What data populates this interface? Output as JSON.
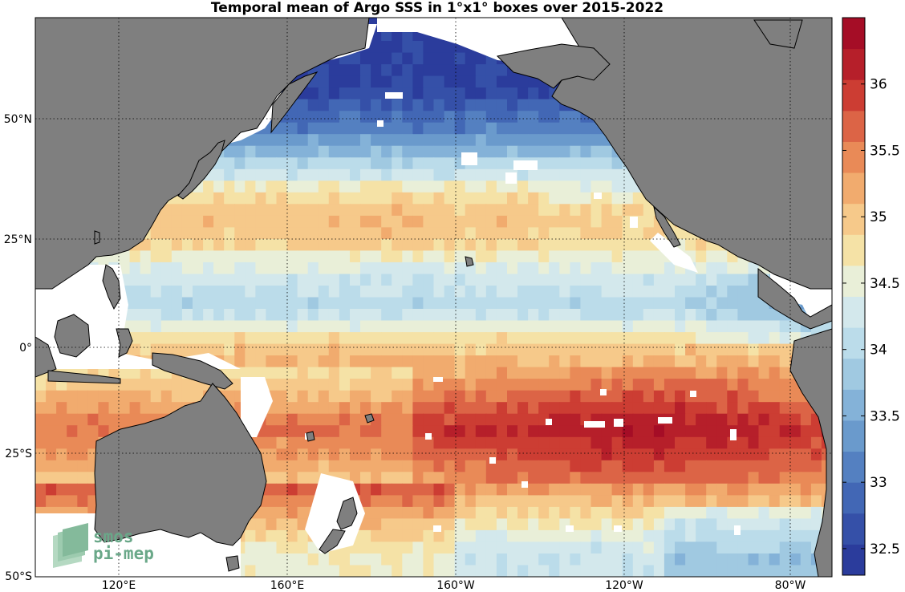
{
  "title": "Temporal mean of Argo SSS in 1°x1° boxes over 2015-2022",
  "map": {
    "lon_range_deg_east": [
      100,
      290
    ],
    "lat_range": [
      -50,
      70
    ],
    "graticule": "dotted",
    "land_color": "#7f7f7f",
    "nodata_color": "#ffffff",
    "lat_ticks": [
      {
        "value": 50,
        "label": "50°N"
      },
      {
        "value": 25,
        "label": "25°N"
      },
      {
        "value": 0,
        "label": "0°"
      },
      {
        "value": -25,
        "label": "25°S"
      },
      {
        "value": -50,
        "label": "50°S"
      }
    ],
    "lon_ticks": [
      {
        "value": 120,
        "label": "120°E"
      },
      {
        "value": 160,
        "label": "160°E"
      },
      {
        "value": 200,
        "label": "160°W"
      },
      {
        "value": 240,
        "label": "120°W"
      },
      {
        "value": 280,
        "label": "80°W"
      }
    ]
  },
  "colorbar": {
    "range": [
      32.3,
      36.5
    ],
    "tick_labels": [
      "32.5",
      "33",
      "33.5",
      "34",
      "34.5",
      "35",
      "35.5",
      "36"
    ],
    "colors": [
      "#2b3c9c",
      "#3550a8",
      "#4267b5",
      "#5480c1",
      "#6a9acc",
      "#84b2d8",
      "#a0c9e1",
      "#bbdcea",
      "#d3e8ec",
      "#e9efd8",
      "#f5e2a6",
      "#f6c98a",
      "#f1ab6e",
      "#e98a57",
      "#dc6446",
      "#cc3d33",
      "#b61f2a",
      "#a50d26"
    ]
  },
  "chart_data": {
    "type": "heatmap",
    "title": "Temporal mean of Argo SSS in 1°x1° boxes over 2015-2022",
    "variable": "SSS",
    "zlim": [
      32.3,
      36.5
    ],
    "colorbar_ticks": [
      32.5,
      33,
      33.5,
      34,
      34.5,
      35,
      35.5,
      36
    ],
    "xaxis_ticks": [
      "120°E",
      "160°E",
      "160°W",
      "120°W",
      "80°W"
    ],
    "yaxis_ticks": [
      "50°N",
      "25°N",
      "0°",
      "25°S",
      "50°S"
    ],
    "zonal_profile_approx": [
      {
        "lat": 55,
        "sss": 32.5
      },
      {
        "lat": 45,
        "sss": 33.2
      },
      {
        "lat": 38,
        "sss": 34.1
      },
      {
        "lat": 28,
        "sss": 34.9
      },
      {
        "lat": 22,
        "sss": 34.8
      },
      {
        "lat": 15,
        "sss": 34.3
      },
      {
        "lat": 8,
        "sss": 34.0
      },
      {
        "lat": 0,
        "sss": 34.9
      },
      {
        "lat": -8,
        "sss": 35.4
      },
      {
        "lat": -18,
        "sss": 36.1
      },
      {
        "lat": -28,
        "sss": 35.6
      },
      {
        "lat": -38,
        "sss": 34.7
      },
      {
        "lat": -45,
        "sss": 34.2
      }
    ]
  },
  "logo": {
    "line1": "smos",
    "line2": "pi-mep"
  }
}
